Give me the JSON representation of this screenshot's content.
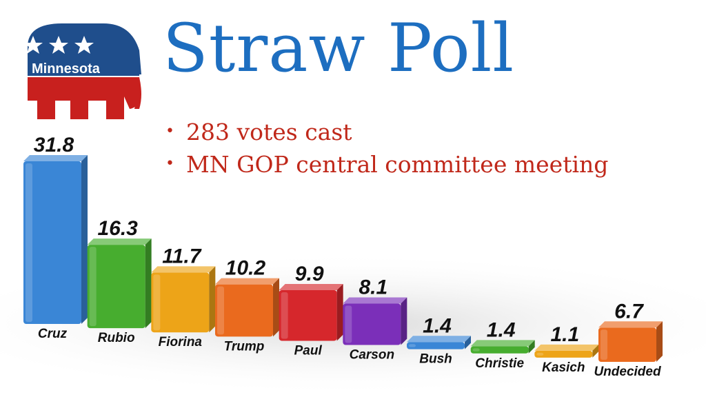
{
  "logo": {
    "text": "Minnesota",
    "colors": {
      "blue": "#1f4e8c",
      "red": "#c8201e"
    }
  },
  "title": "Straw Poll",
  "bullets": [
    "283 votes cast",
    "MN GOP central committee meeting"
  ],
  "chart_data": {
    "type": "bar",
    "title": "",
    "xlabel": "",
    "ylabel": "",
    "ylim": [
      0,
      31.8
    ],
    "grid": false,
    "legend": "none",
    "categories": [
      "Cruz",
      "Rubio",
      "Fiorina",
      "Trump",
      "Paul",
      "Carson",
      "Bush",
      "Christie",
      "Kasich",
      "Undecided"
    ],
    "values": [
      31.8,
      16.3,
      11.7,
      10.2,
      9.9,
      8.1,
      1.4,
      1.4,
      1.1,
      6.7
    ],
    "value_labels": [
      "31.8",
      "16.3",
      "11.7",
      "10.2",
      "9.9",
      "8.1",
      "1.4",
      "1.4",
      "1.1",
      "6.7"
    ],
    "colors": [
      "#3a86d6",
      "#47ad2f",
      "#eda418",
      "#ea6a1e",
      "#d6272c",
      "#7b2fb9",
      "#3a86d6",
      "#47ad2f",
      "#eda418",
      "#ea6a1e"
    ]
  }
}
